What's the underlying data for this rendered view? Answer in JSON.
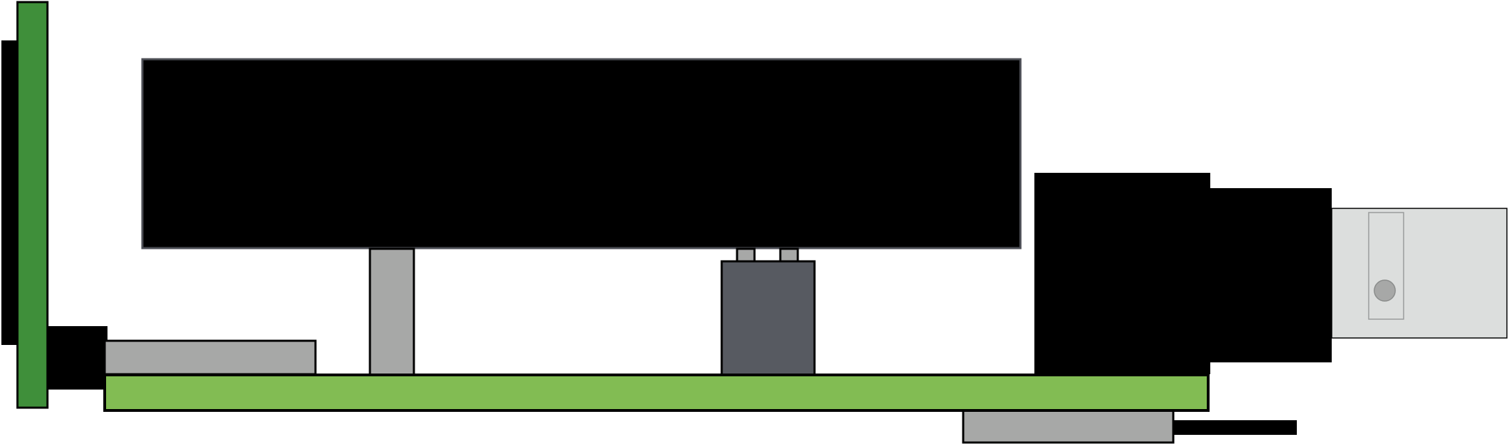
{
  "diagram": {
    "components": [
      {
        "id": "vertical-board",
        "icon": "vertical-green-pcb",
        "fill": "#3f8f3a"
      },
      {
        "id": "vertical-board-backplate",
        "icon": "black-backplate",
        "fill": "#000000"
      },
      {
        "id": "main-board",
        "icon": "horizontal-green-pcb",
        "fill": "#82bc53"
      },
      {
        "id": "edge-connector",
        "icon": "black-connector-block",
        "fill": "#000000"
      },
      {
        "id": "left-grey-module",
        "icon": "grey-module",
        "fill": "#a7a8a7"
      },
      {
        "id": "display-panel",
        "icon": "black-display-panel",
        "fill": "#000000",
        "border": "#4c4e55"
      },
      {
        "id": "display-standoff",
        "icon": "grey-standoff",
        "fill": "#a7a8a7"
      },
      {
        "id": "component-pins",
        "icon": "grey-pins",
        "fill": "#a7a8a7"
      },
      {
        "id": "dark-component",
        "icon": "dark-grey-chip",
        "fill": "#575a61"
      },
      {
        "id": "black-housing",
        "icon": "black-housing-block",
        "fill": "#000000"
      },
      {
        "id": "black-housing-step",
        "icon": "black-housing-step",
        "fill": "#000000"
      },
      {
        "id": "light-grey-plug",
        "icon": "light-grey-plug",
        "fill": "#dcdedd"
      },
      {
        "id": "plug-slot",
        "icon": "plug-slot-outline",
        "fill": "#dcdedd",
        "border": "#9a9c9b"
      },
      {
        "id": "plug-button",
        "icon": "round-grey-button",
        "fill": "#a7a8a7"
      },
      {
        "id": "bottom-grey-module",
        "icon": "grey-module",
        "fill": "#a7a8a7"
      },
      {
        "id": "bottom-lead",
        "icon": "black-lead-wire",
        "fill": "#000000"
      }
    ]
  }
}
